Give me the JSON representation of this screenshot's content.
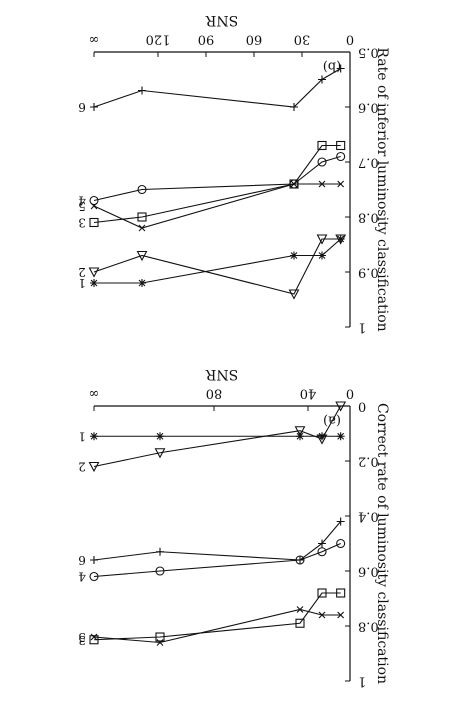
{
  "chart_data": [
    {
      "type": "line",
      "panel_label": "(a)",
      "title": "",
      "xlabel": "SNR",
      "ylabel": "Correct rate of luminosity classification",
      "xlim": [
        0,
        125
      ],
      "ylim": [
        0,
        1
      ],
      "x_ticks": [
        "0",
        "40",
        "80",
        "∞"
      ],
      "y_ticks": [
        "0",
        "0.2",
        "0.4",
        "0.6",
        "0.8",
        "1"
      ],
      "grid": false,
      "legend": "none (series numbered 1–6 at line ends)",
      "series": [
        {
          "name": "1",
          "marker": "asterisk",
          "x": [
            5,
            15,
            25,
            100,
            160
          ],
          "y": [
            0.11,
            0.11,
            0.11,
            0.11,
            0.11
          ]
        },
        {
          "name": "2",
          "marker": "triangle",
          "x": [
            5,
            15,
            25,
            100,
            160
          ],
          "y": [
            0.0,
            0.12,
            0.09,
            0.17,
            0.22
          ]
        },
        {
          "name": "3",
          "marker": "square",
          "x": [
            5,
            15,
            25,
            100,
            160
          ],
          "y": [
            0.68,
            0.68,
            0.79,
            0.84,
            0.85
          ]
        },
        {
          "name": "4",
          "marker": "circle",
          "x": [
            5,
            15,
            25,
            100,
            160
          ],
          "y": [
            0.5,
            0.53,
            0.56,
            0.6,
            0.62
          ]
        },
        {
          "name": "5",
          "marker": "cross",
          "x": [
            5,
            15,
            25,
            100,
            160
          ],
          "y": [
            0.76,
            0.76,
            0.74,
            0.86,
            0.84
          ]
        },
        {
          "name": "6",
          "marker": "plus",
          "x": [
            5,
            15,
            25,
            100,
            160
          ],
          "y": [
            0.42,
            0.5,
            0.56,
            0.53,
            0.56
          ]
        }
      ]
    },
    {
      "type": "line",
      "panel_label": "(b)",
      "title": "",
      "xlabel": "SNR",
      "ylabel": "Rate of inferior luminosity classification",
      "xlim": [
        0,
        140
      ],
      "ylim": [
        0.5,
        1
      ],
      "x_ticks": [
        "0",
        "30",
        "60",
        "90",
        "120",
        "∞"
      ],
      "y_ticks": [
        "0.5",
        "0.6",
        "0.7",
        "0.8",
        "0.9",
        "1"
      ],
      "grid": false,
      "legend": "none (series numbered 1–6 at line ends)",
      "series": [
        {
          "name": "1",
          "marker": "asterisk",
          "x": [
            5,
            15,
            25,
            100,
            160
          ],
          "y": [
            0.84,
            0.87,
            0.87,
            0.92,
            0.92
          ]
        },
        {
          "name": "2",
          "marker": "triangle",
          "x": [
            5,
            15,
            25,
            100,
            160
          ],
          "y": [
            0.84,
            0.84,
            0.94,
            0.87,
            0.9
          ]
        },
        {
          "name": "3",
          "marker": "square",
          "x": [
            5,
            15,
            25,
            100,
            160
          ],
          "y": [
            0.67,
            0.67,
            0.74,
            0.8,
            0.81
          ]
        },
        {
          "name": "4",
          "marker": "circle",
          "x": [
            5,
            15,
            25,
            100,
            160
          ],
          "y": [
            0.69,
            0.7,
            0.74,
            0.75,
            0.77
          ]
        },
        {
          "name": "5",
          "marker": "cross",
          "x": [
            5,
            15,
            25,
            100,
            160
          ],
          "y": [
            0.74,
            0.74,
            0.74,
            0.82,
            0.78
          ]
        },
        {
          "name": "6",
          "marker": "plus",
          "x": [
            5,
            15,
            25,
            100,
            160
          ],
          "y": [
            0.53,
            0.55,
            0.6,
            0.57,
            0.6
          ]
        }
      ]
    }
  ]
}
